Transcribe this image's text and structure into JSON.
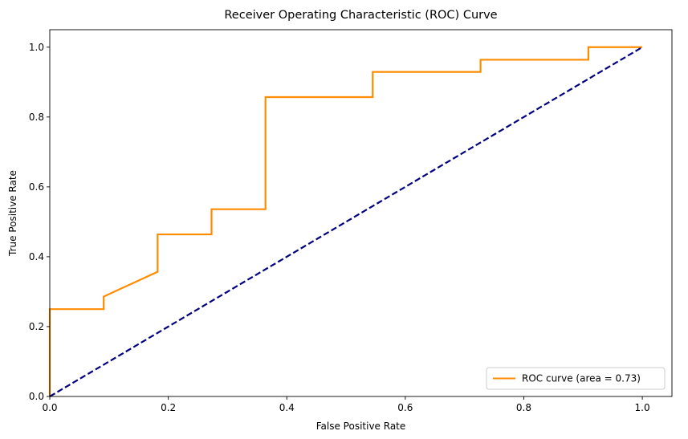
{
  "chart_data": {
    "type": "line",
    "title": "Receiver Operating Characteristic (ROC) Curve",
    "xlabel": "False Positive Rate",
    "ylabel": "True Positive Rate",
    "xlim": [
      0.0,
      1.05
    ],
    "ylim": [
      0.0,
      1.05
    ],
    "xticks": [
      "0.0",
      "0.2",
      "0.4",
      "0.6",
      "0.8",
      "1.0"
    ],
    "yticks": [
      "0.0",
      "0.2",
      "0.4",
      "0.6",
      "0.8",
      "1.0"
    ],
    "grid": false,
    "legend_position": "lower-right",
    "series": [
      {
        "name": "ROC curve (area = 0.73)",
        "color": "#ff8c00",
        "style": "solid",
        "x": [
          0.0,
          0.0,
          0.091,
          0.091,
          0.182,
          0.182,
          0.273,
          0.273,
          0.364,
          0.364,
          0.545,
          0.545,
          0.727,
          0.727,
          0.909,
          0.909,
          1.0
        ],
        "y": [
          0.0,
          0.25,
          0.25,
          0.286,
          0.357,
          0.464,
          0.464,
          0.536,
          0.536,
          0.857,
          0.857,
          0.929,
          0.929,
          0.964,
          0.964,
          1.0,
          1.0
        ]
      },
      {
        "color": "#000080",
        "style": "dashed",
        "x": [
          0.0,
          1.0
        ],
        "y": [
          0.0,
          1.0
        ]
      }
    ]
  }
}
